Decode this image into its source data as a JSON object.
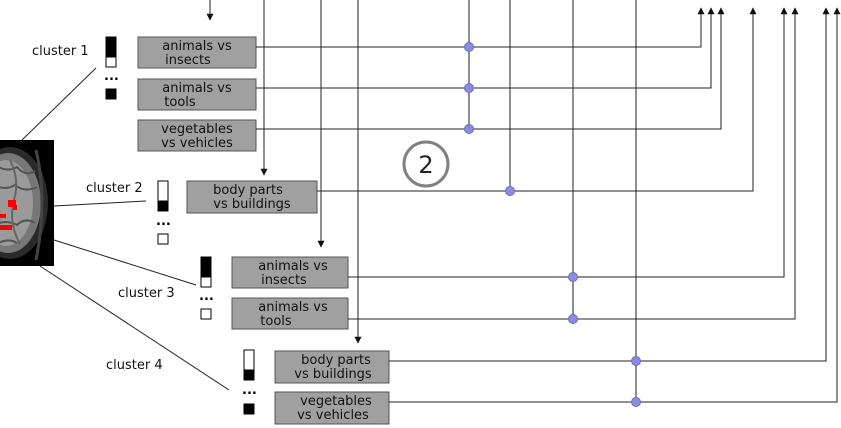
{
  "clusters": [
    {
      "label": "cluster 1",
      "pairs": [
        [
          "animals vs",
          "insects"
        ],
        [
          "animals vs",
          "tools"
        ],
        [
          "vegetables",
          "vs vehicles"
        ]
      ]
    },
    {
      "label": "cluster 2",
      "pairs": [
        [
          "body parts",
          "vs buildings"
        ]
      ]
    },
    {
      "label": "cluster 3",
      "pairs": [
        [
          "animals vs",
          "insects"
        ],
        [
          "animals vs",
          "tools"
        ]
      ]
    },
    {
      "label": "cluster 4",
      "pairs": [
        [
          "body parts",
          "vs buildings"
        ],
        [
          "vegetables",
          "vs vehicles"
        ]
      ]
    }
  ],
  "badge": "2",
  "ellipsis": "...",
  "colors": {
    "box_fill": "#a0a0a0",
    "node": "#8c8cde",
    "brain_dark": "#000000",
    "activation": "#ff0000"
  }
}
